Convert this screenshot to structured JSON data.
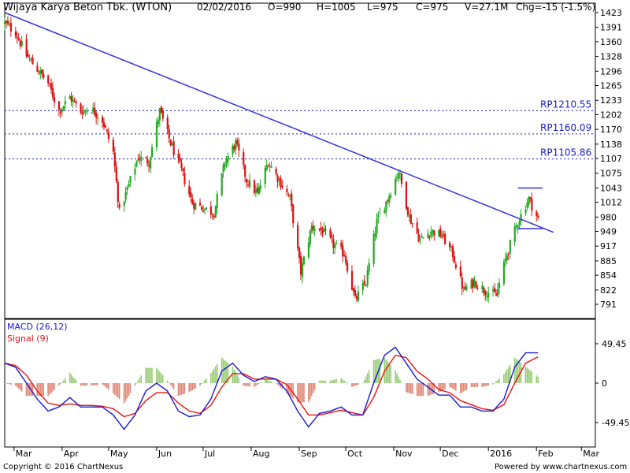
{
  "header": {
    "title": "Wijaya Karya Beton Tbk. (WTON)",
    "date": "02/02/2016",
    "open": "O=990",
    "high": "H=1005",
    "low": "L=975",
    "close": "C=975",
    "volume": "V=27.1M",
    "change": "Chg=-15 (-1.5%)"
  },
  "footer": {
    "copyright": "Copyright © 2016 ChartNexus",
    "powered": "Powered by www.chartnexus.com"
  },
  "colors": {
    "up": "#22aa22",
    "down": "#dd1111",
    "macd": "#1a1acc",
    "signal": "#ee1111",
    "trend": "#3333dd",
    "resistance": "#1a1acc",
    "hist_pos": "#99cc77",
    "hist_neg": "#dd8877"
  },
  "chart_data": [
    {
      "type": "candlestick",
      "title": "Wijaya Karya Beton Tbk. (WTON)",
      "xlabels": [
        "Mar",
        "Apr",
        "May",
        "Jun",
        "Jul",
        "Aug",
        "Sep",
        "Oct",
        "Nov",
        "Dec",
        "2016",
        "Feb",
        "Mar"
      ],
      "yticks": [
        1423,
        1391,
        1360,
        1328,
        1296,
        1265,
        1233,
        1202,
        1170,
        1138,
        1107,
        1075,
        1043,
        1012,
        980,
        949,
        917,
        885,
        854,
        822,
        791
      ],
      "ylim": [
        763,
        1423
      ],
      "resistance_levels": [
        {
          "label": "RP1210.55",
          "value": 1210.55
        },
        {
          "label": "RP1160.09",
          "value": 1160.09
        },
        {
          "label": "RP1105.86",
          "value": 1105.86
        }
      ],
      "trendline": {
        "start": [
          "2015-02-23",
          1423
        ],
        "end": [
          "2016-02-12",
          947
        ]
      },
      "triangle": {
        "top": [
          [
            "2016-01-20",
            1043
          ],
          [
            "2016-02-05",
            1043
          ]
        ],
        "bottom": [
          [
            "2016-01-20",
            955
          ],
          [
            "2016-02-05",
            955
          ]
        ]
      },
      "path": [
        [
          "2015-02-23",
          1400
        ],
        [
          "2015-03-02",
          1380
        ],
        [
          "2015-03-09",
          1330
        ],
        [
          "2015-03-16",
          1300
        ],
        [
          "2015-03-23",
          1270
        ],
        [
          "2015-03-30",
          1210
        ],
        [
          "2015-04-06",
          1240
        ],
        [
          "2015-04-13",
          1210
        ],
        [
          "2015-04-20",
          1215
        ],
        [
          "2015-04-27",
          1190
        ],
        [
          "2015-05-04",
          1120
        ],
        [
          "2015-05-08",
          990
        ],
        [
          "2015-05-13",
          1040
        ],
        [
          "2015-05-20",
          1110
        ],
        [
          "2015-05-27",
          1100
        ],
        [
          "2015-06-03",
          1210
        ],
        [
          "2015-06-10",
          1140
        ],
        [
          "2015-06-17",
          1080
        ],
        [
          "2015-06-24",
          1010
        ],
        [
          "2015-07-01",
          1000
        ],
        [
          "2015-07-08",
          990
        ],
        [
          "2015-07-15",
          1100
        ],
        [
          "2015-07-22",
          1140
        ],
        [
          "2015-07-29",
          1060
        ],
        [
          "2015-08-05",
          1030
        ],
        [
          "2015-08-12",
          1100
        ],
        [
          "2015-08-19",
          1060
        ],
        [
          "2015-08-26",
          1020
        ],
        [
          "2015-09-02",
          860
        ],
        [
          "2015-09-09",
          960
        ],
        [
          "2015-09-16",
          950
        ],
        [
          "2015-09-23",
          920
        ],
        [
          "2015-09-30",
          900
        ],
        [
          "2015-10-07",
          800
        ],
        [
          "2015-10-14",
          840
        ],
        [
          "2015-10-21",
          970
        ],
        [
          "2015-10-28",
          1020
        ],
        [
          "2015-11-04",
          1080
        ],
        [
          "2015-11-11",
          980
        ],
        [
          "2015-11-18",
          930
        ],
        [
          "2015-11-25",
          950
        ],
        [
          "2015-12-02",
          940
        ],
        [
          "2015-12-09",
          900
        ],
        [
          "2015-12-16",
          820
        ],
        [
          "2015-12-23",
          840
        ],
        [
          "2015-12-30",
          820
        ],
        [
          "2016-01-06",
          810
        ],
        [
          "2016-01-13",
          900
        ],
        [
          "2016-01-20",
          970
        ],
        [
          "2016-01-27",
          1020
        ],
        [
          "2016-02-02",
          975
        ]
      ]
    },
    {
      "type": "line",
      "title": "MACD (26,12)",
      "ylabels": [
        "49.45",
        "0",
        "-49.45"
      ],
      "ylim": [
        -60,
        62
      ],
      "series": [
        {
          "name": "MACD (26,12)",
          "values": [
            [
              "2015-02-23",
              25
            ],
            [
              "2015-03-02",
              20
            ],
            [
              "2015-03-09",
              0
            ],
            [
              "2015-03-16",
              -20
            ],
            [
              "2015-03-23",
              -35
            ],
            [
              "2015-03-30",
              -30
            ],
            [
              "2015-04-06",
              -18
            ],
            [
              "2015-04-13",
              -30
            ],
            [
              "2015-04-20",
              -30
            ],
            [
              "2015-04-27",
              -30
            ],
            [
              "2015-05-04",
              -40
            ],
            [
              "2015-05-11",
              -58
            ],
            [
              "2015-05-18",
              -40
            ],
            [
              "2015-05-25",
              -10
            ],
            [
              "2015-06-01",
              0
            ],
            [
              "2015-06-08",
              -10
            ],
            [
              "2015-06-15",
              -35
            ],
            [
              "2015-06-22",
              -42
            ],
            [
              "2015-06-29",
              -40
            ],
            [
              "2015-07-06",
              -20
            ],
            [
              "2015-07-13",
              15
            ],
            [
              "2015-07-20",
              25
            ],
            [
              "2015-07-27",
              10
            ],
            [
              "2015-08-03",
              2
            ],
            [
              "2015-08-10",
              8
            ],
            [
              "2015-08-17",
              5
            ],
            [
              "2015-08-24",
              -10
            ],
            [
              "2015-08-31",
              -35
            ],
            [
              "2015-09-07",
              -55
            ],
            [
              "2015-09-14",
              -38
            ],
            [
              "2015-09-21",
              -35
            ],
            [
              "2015-09-28",
              -30
            ],
            [
              "2015-10-05",
              -40
            ],
            [
              "2015-10-12",
              -40
            ],
            [
              "2015-10-19",
              0
            ],
            [
              "2015-10-26",
              35
            ],
            [
              "2015-11-02",
              45
            ],
            [
              "2015-11-09",
              25
            ],
            [
              "2015-11-16",
              5
            ],
            [
              "2015-11-23",
              -5
            ],
            [
              "2015-11-30",
              -15
            ],
            [
              "2015-12-07",
              -15
            ],
            [
              "2015-12-14",
              -30
            ],
            [
              "2015-12-21",
              -30
            ],
            [
              "2015-12-28",
              -35
            ],
            [
              "2016-01-04",
              -35
            ],
            [
              "2016-01-11",
              -20
            ],
            [
              "2016-01-18",
              20
            ],
            [
              "2016-01-25",
              38
            ],
            [
              "2016-02-02",
              38
            ]
          ]
        },
        {
          "name": "Signal (9)",
          "values": [
            [
              "2015-02-23",
              25
            ],
            [
              "2015-03-02",
              22
            ],
            [
              "2015-03-09",
              10
            ],
            [
              "2015-03-16",
              -10
            ],
            [
              "2015-03-23",
              -25
            ],
            [
              "2015-03-30",
              -28
            ],
            [
              "2015-04-06",
              -26
            ],
            [
              "2015-04-13",
              -28
            ],
            [
              "2015-04-20",
              -28
            ],
            [
              "2015-04-27",
              -29
            ],
            [
              "2015-05-04",
              -32
            ],
            [
              "2015-05-11",
              -42
            ],
            [
              "2015-05-18",
              -38
            ],
            [
              "2015-05-25",
              -22
            ],
            [
              "2015-06-01",
              -12
            ],
            [
              "2015-06-08",
              -12
            ],
            [
              "2015-06-15",
              -25
            ],
            [
              "2015-06-22",
              -35
            ],
            [
              "2015-06-29",
              -38
            ],
            [
              "2015-07-06",
              -28
            ],
            [
              "2015-07-13",
              -5
            ],
            [
              "2015-07-20",
              12
            ],
            [
              "2015-07-27",
              12
            ],
            [
              "2015-08-03",
              5
            ],
            [
              "2015-08-10",
              5
            ],
            [
              "2015-08-17",
              5
            ],
            [
              "2015-08-24",
              -2
            ],
            [
              "2015-08-31",
              -20
            ],
            [
              "2015-09-07",
              -40
            ],
            [
              "2015-09-14",
              -40
            ],
            [
              "2015-09-21",
              -37
            ],
            [
              "2015-09-28",
              -34
            ],
            [
              "2015-10-05",
              -37
            ],
            [
              "2015-10-12",
              -40
            ],
            [
              "2015-10-19",
              -18
            ],
            [
              "2015-10-26",
              15
            ],
            [
              "2015-11-02",
              35
            ],
            [
              "2015-11-09",
              32
            ],
            [
              "2015-11-16",
              15
            ],
            [
              "2015-11-23",
              5
            ],
            [
              "2015-11-30",
              -8
            ],
            [
              "2015-12-07",
              -12
            ],
            [
              "2015-12-14",
              -22
            ],
            [
              "2015-12-21",
              -27
            ],
            [
              "2015-12-28",
              -32
            ],
            [
              "2016-01-04",
              -34
            ],
            [
              "2016-01-11",
              -27
            ],
            [
              "2016-01-18",
              0
            ],
            [
              "2016-01-25",
              25
            ],
            [
              "2016-02-02",
              33
            ]
          ]
        }
      ]
    }
  ]
}
